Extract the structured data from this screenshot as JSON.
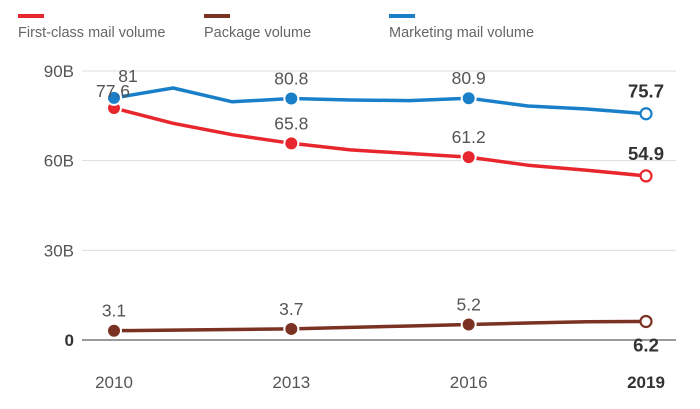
{
  "chart_data": {
    "type": "line",
    "title": "",
    "xlabel": "",
    "ylabel": "",
    "x": [
      2010,
      2011,
      2012,
      2013,
      2014,
      2015,
      2016,
      2017,
      2018,
      2019
    ],
    "ylim": [
      0,
      90
    ],
    "y_ticks": [
      {
        "value": 90,
        "label": "90B",
        "bold": false
      },
      {
        "value": 60,
        "label": "60B",
        "bold": false
      },
      {
        "value": 30,
        "label": "30B",
        "bold": false
      },
      {
        "value": 0,
        "label": "0",
        "bold": true
      }
    ],
    "x_ticks": [
      {
        "value": 2010,
        "label": "2010",
        "bold": false
      },
      {
        "value": 2013,
        "label": "2013",
        "bold": false
      },
      {
        "value": 2016,
        "label": "2016",
        "bold": false
      },
      {
        "value": 2019,
        "label": "2019",
        "bold": true
      }
    ],
    "grid": true,
    "legend_position": "top-left",
    "series": [
      {
        "key": "first-class",
        "name": "First-class mail volume",
        "color": "#e8262e",
        "values": [
          77.6,
          72.5,
          68.7,
          65.8,
          63.6,
          62.4,
          61.2,
          58.5,
          56.8,
          54.9
        ],
        "labels": [
          {
            "year": 2010,
            "text": "77.6",
            "bold": false,
            "position": "above"
          },
          {
            "year": 2013,
            "text": "65.8",
            "bold": false,
            "position": "above"
          },
          {
            "year": 2016,
            "text": "61.2",
            "bold": false,
            "position": "above"
          },
          {
            "year": 2019,
            "text": "54.9",
            "bold": true,
            "position": "above"
          }
        ]
      },
      {
        "key": "package",
        "name": "Package volume",
        "color": "#7a3222",
        "values": [
          3.1,
          3.3,
          3.5,
          3.7,
          4.2,
          4.7,
          5.2,
          5.7,
          6.1,
          6.2
        ],
        "labels": [
          {
            "year": 2010,
            "text": "3.1",
            "bold": false,
            "position": "above"
          },
          {
            "year": 2013,
            "text": "3.7",
            "bold": false,
            "position": "above"
          },
          {
            "year": 2016,
            "text": "5.2",
            "bold": false,
            "position": "above"
          },
          {
            "year": 2019,
            "text": "6.2",
            "bold": true,
            "position": "below"
          }
        ]
      },
      {
        "key": "marketing",
        "name": "Marketing mail volume",
        "color": "#1a7fc9",
        "values": [
          81,
          84.3,
          79.7,
          80.8,
          80.3,
          80.1,
          80.9,
          78.3,
          77.3,
          75.7
        ],
        "labels": [
          {
            "year": 2010,
            "text": "81",
            "bold": false,
            "position": "above"
          },
          {
            "year": 2013,
            "text": "80.8",
            "bold": false,
            "position": "above"
          },
          {
            "year": 2016,
            "text": "80.9",
            "bold": false,
            "position": "above"
          },
          {
            "year": 2019,
            "text": "75.7",
            "bold": true,
            "position": "above"
          }
        ]
      }
    ],
    "marker_years": [
      2010,
      2013,
      2016
    ],
    "open_marker_year": 2019
  }
}
